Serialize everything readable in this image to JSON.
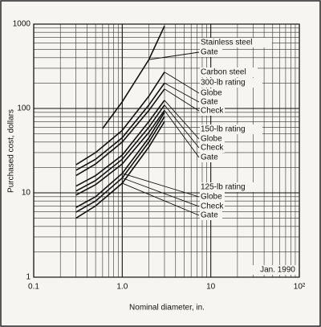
{
  "chart_data": {
    "type": "line",
    "x_label": "Nominal diameter, in.",
    "y_label": "Purchased cost, dollars",
    "log_x": true,
    "log_y": true,
    "grid": true,
    "color": "#111111",
    "xlim": [
      0.1,
      100
    ],
    "ylim": [
      1,
      1000
    ],
    "xticks": [
      0.1,
      {
        "value": 1,
        "label": "1.0"
      },
      10,
      {
        "value": 100,
        "label": "10²"
      }
    ],
    "yticks": [
      1,
      10,
      100,
      1000
    ],
    "annotations": [
      "Stainless steel",
      "Carbon steel",
      "300-lb rating",
      "150-lb rating",
      "125-lb rating",
      "Jan. 1990"
    ],
    "series": [
      {
        "name": "Gate",
        "x": [
          0.6,
          1,
          2,
          3
        ],
        "values": [
          58,
          120,
          380,
          950
        ]
      },
      {
        "name": "Globe",
        "x": [
          0.3,
          0.5,
          1,
          2,
          3
        ],
        "values": [
          21.5,
          30,
          55,
          140,
          270
        ]
      },
      {
        "name": "Gate",
        "x": [
          0.3,
          0.5,
          1,
          2,
          3
        ],
        "values": [
          18.5,
          25,
          45,
          110,
          200
        ]
      },
      {
        "name": "Check",
        "x": [
          0.3,
          0.5,
          1,
          2,
          3
        ],
        "values": [
          16,
          22,
          40,
          95,
          170
        ]
      },
      {
        "name": "Globe",
        "x": [
          0.3,
          0.5,
          1,
          2,
          3
        ],
        "values": [
          12,
          16,
          28,
          70,
          125
        ]
      },
      {
        "name": "Check",
        "x": [
          0.3,
          0.5,
          1,
          2,
          3
        ],
        "values": [
          10.5,
          14,
          25,
          60,
          110
        ]
      },
      {
        "name": "Gate",
        "x": [
          0.3,
          0.5,
          1,
          2,
          3
        ],
        "values": [
          9.4,
          12.5,
          22,
          52,
          95
        ]
      },
      {
        "name": "Globe",
        "x": [
          0.3,
          0.5,
          1,
          2,
          3
        ],
        "values": [
          6.7,
          9,
          17,
          45,
          90
        ]
      },
      {
        "name": "Check",
        "x": [
          0.3,
          0.5,
          1,
          2,
          3
        ],
        "values": [
          5.9,
          8,
          15,
          40,
          80
        ]
      },
      {
        "name": "Gate",
        "x": [
          0.3,
          0.5,
          1,
          2,
          3
        ],
        "values": [
          5,
          7,
          13,
          35,
          70
        ]
      }
    ]
  }
}
